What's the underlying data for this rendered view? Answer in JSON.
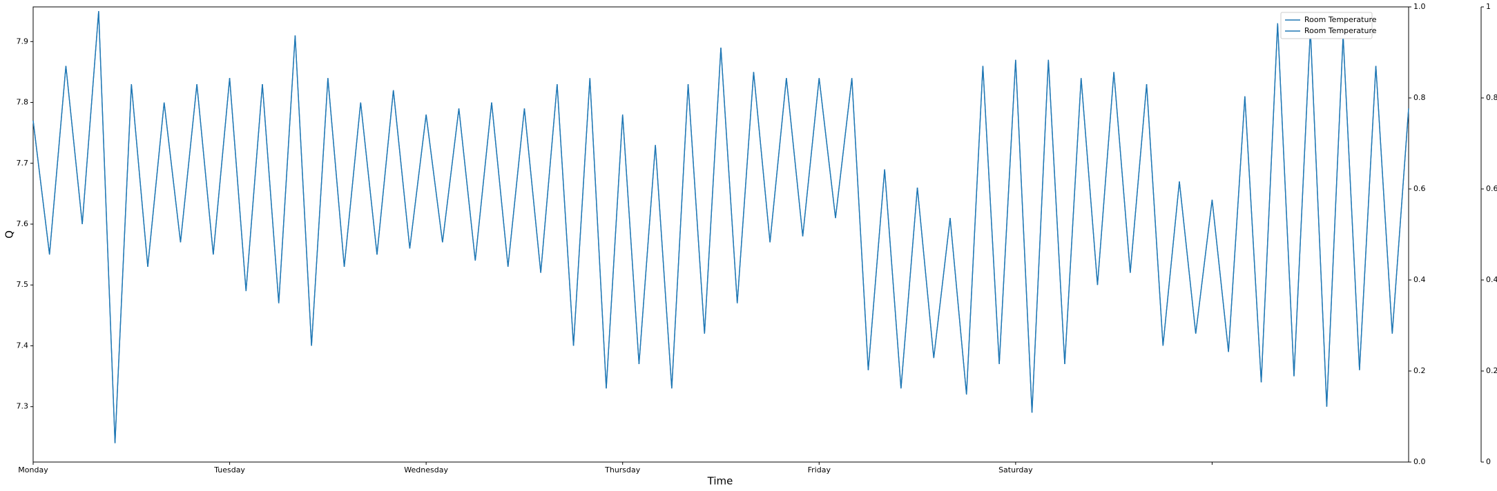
{
  "chart_data": {
    "type": "line",
    "xlabel": "Time",
    "ylabel": "Q",
    "x": [
      0,
      2,
      4,
      6,
      8,
      10,
      12,
      14,
      16,
      18,
      20,
      22,
      24,
      26,
      28,
      30,
      32,
      34,
      36,
      38,
      40,
      42,
      44,
      46,
      48,
      50,
      52,
      54,
      56,
      58,
      60,
      62,
      64,
      66,
      68,
      70,
      72,
      74,
      76,
      78,
      80,
      82,
      84,
      86,
      88,
      90,
      92,
      94,
      96,
      98,
      100,
      102,
      104,
      106,
      108,
      110,
      112,
      114,
      116,
      118,
      120,
      122,
      124,
      126,
      128,
      130,
      132,
      134,
      136,
      138,
      140,
      142,
      144,
      146,
      148,
      150,
      152,
      154,
      156,
      158,
      160,
      162,
      164,
      166,
      168
    ],
    "series": [
      {
        "name": "Room Temperature",
        "color": "#1f77b4",
        "values": [
          7.77,
          7.55,
          7.86,
          7.6,
          7.95,
          7.24,
          7.83,
          7.53,
          7.8,
          7.57,
          7.83,
          7.55,
          7.84,
          7.49,
          7.83,
          7.47,
          7.91,
          7.4,
          7.84,
          7.53,
          7.8,
          7.55,
          7.82,
          7.56,
          7.78,
          7.57,
          7.79,
          7.54,
          7.8,
          7.53,
          7.79,
          7.52,
          7.83,
          7.4,
          7.84,
          7.33,
          7.78,
          7.37,
          7.73,
          7.33,
          7.83,
          7.42,
          7.89,
          7.47,
          7.85,
          7.57,
          7.84,
          7.58,
          7.84,
          7.61,
          7.84,
          7.36,
          7.69,
          7.33,
          7.66,
          7.38,
          7.61,
          7.32,
          7.86,
          7.37,
          7.87,
          7.29,
          7.87,
          7.37,
          7.84,
          7.5,
          7.85,
          7.52,
          7.83,
          7.4,
          7.67,
          7.42,
          7.64,
          7.39,
          7.81,
          7.34,
          7.93,
          7.35,
          7.92,
          7.3,
          7.91,
          7.36,
          7.86,
          7.42,
          7.79
        ]
      },
      {
        "name": "Room Temperature",
        "color": "#1f77b4",
        "values": [
          7.77,
          7.55,
          7.86,
          7.6,
          7.95,
          7.24,
          7.83,
          7.53,
          7.8,
          7.57,
          7.83,
          7.55,
          7.84,
          7.49,
          7.83,
          7.47,
          7.91,
          7.4,
          7.84,
          7.53,
          7.8,
          7.55,
          7.82,
          7.56,
          7.78,
          7.57,
          7.79,
          7.54,
          7.8,
          7.53,
          7.79,
          7.52,
          7.83,
          7.4,
          7.84,
          7.33,
          7.78,
          7.37,
          7.73,
          7.33,
          7.83,
          7.42,
          7.89,
          7.47,
          7.85,
          7.57,
          7.84,
          7.58,
          7.84,
          7.61,
          7.84,
          7.36,
          7.69,
          7.33,
          7.66,
          7.38,
          7.61,
          7.32,
          7.86,
          7.37,
          7.87,
          7.29,
          7.87,
          7.37,
          7.84,
          7.5,
          7.85,
          7.52,
          7.83,
          7.4,
          7.67,
          7.42,
          7.64,
          7.39,
          7.81,
          7.34,
          7.93,
          7.35,
          7.92,
          7.3,
          7.91,
          7.36,
          7.86,
          7.42,
          7.79
        ]
      }
    ],
    "xlim": [
      0,
      168
    ],
    "xticks": [
      {
        "value": 0,
        "label": "Monday"
      },
      {
        "value": 24,
        "label": "Tuesday"
      },
      {
        "value": 48,
        "label": "Wednesday"
      },
      {
        "value": 72,
        "label": "Thursday"
      },
      {
        "value": 96,
        "label": "Friday"
      },
      {
        "value": 120,
        "label": "Saturday"
      },
      {
        "value": 144,
        "label": null
      }
    ],
    "ylim": [
      7.209,
      7.957
    ],
    "yticks": [
      7.3,
      7.4,
      7.5,
      7.6,
      7.7,
      7.8,
      7.9
    ],
    "y2lim": [
      0,
      1
    ],
    "y2ticks": [
      {
        "value": 0,
        "label": "0.0"
      },
      {
        "value": 0.2,
        "label": "0.2"
      },
      {
        "value": 0.4,
        "label": "0.4"
      },
      {
        "value": 0.6,
        "label": "0.6"
      },
      {
        "value": 0.8,
        "label": "0.8"
      },
      {
        "value": 1,
        "label": "1.0"
      }
    ],
    "y3ticks": [
      0,
      0.2,
      0.4,
      0.6,
      0.8,
      1
    ],
    "legend": "upper right",
    "grid": false
  }
}
